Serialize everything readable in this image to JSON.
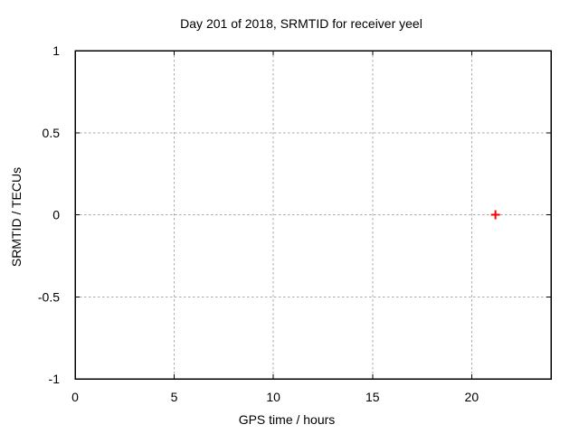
{
  "chart_data": {
    "type": "scatter",
    "title": "Day 201 of 2018, SRMTID for receiver yeel",
    "xlabel": "GPS time / hours",
    "ylabel": "SRMTID / TECUs",
    "xlim": [
      0,
      24
    ],
    "ylim": [
      -1,
      1
    ],
    "xticks": [
      0,
      5,
      10,
      15,
      20
    ],
    "yticks": [
      -1,
      -0.5,
      0,
      0.5,
      1
    ],
    "grid": true,
    "grid_style": "dashed",
    "legend": "none",
    "series": [
      {
        "marker": "plus",
        "color": "#ff0000",
        "points": [
          {
            "x": 21.2,
            "y": 0.0
          }
        ]
      }
    ],
    "colors": {
      "background": "#ffffff",
      "axis": "#000000",
      "text": "#000000",
      "grid": "#aaaaaa"
    }
  }
}
